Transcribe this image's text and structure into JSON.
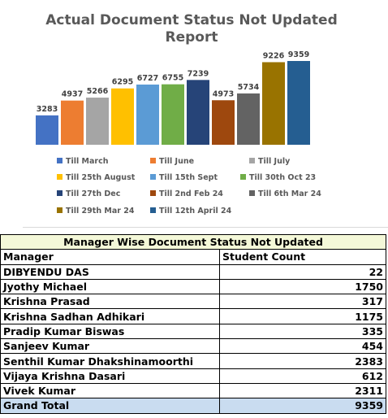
{
  "chart_data": {
    "type": "bar",
    "title": "Actual Document Status Not Updated Report",
    "title_lines": [
      "Actual Document Status Not Updated",
      "Report"
    ],
    "categories": [
      "Till March",
      "Till June",
      "Till July",
      "Till 25th August",
      "Till 15th Sept",
      "Till 30th Oct 23",
      "Till 27th Dec",
      "Till 2nd Feb 24",
      "Till 6th Mar 24",
      "Till 29th Mar 24",
      "Till 12th April 24"
    ],
    "values": [
      3283,
      4937,
      5266,
      6295,
      6727,
      6755,
      7239,
      4973,
      5734,
      9226,
      9359
    ],
    "colors": [
      "#4472c4",
      "#ed7d31",
      "#a5a5a5",
      "#ffc000",
      "#5b9bd5",
      "#70ad47",
      "#264478",
      "#9e480e",
      "#636363",
      "#997300",
      "#255e91"
    ],
    "ylim": [
      0,
      10000
    ],
    "legend_position": "bottom",
    "grid": false
  },
  "table": {
    "title": "Manager Wise Document Status Not Updated",
    "headers": [
      "Manager",
      "Student Count"
    ],
    "rows": [
      [
        "DIBYENDU DAS",
        "22"
      ],
      [
        "Jyothy Michael",
        "1750"
      ],
      [
        "Krishna Prasad",
        "317"
      ],
      [
        "Krishna Sadhan Adhikari",
        "1175"
      ],
      [
        "Pradip Kumar Biswas",
        "335"
      ],
      [
        "Sanjeev Kumar",
        "454"
      ],
      [
        "Senthil Kumar Dhakshinamoorthi",
        "2383"
      ],
      [
        "Vijaya Krishna Dasari",
        "612"
      ],
      [
        "Vivek Kumar",
        "2311"
      ]
    ],
    "total": [
      "Grand Total",
      "9359"
    ]
  }
}
